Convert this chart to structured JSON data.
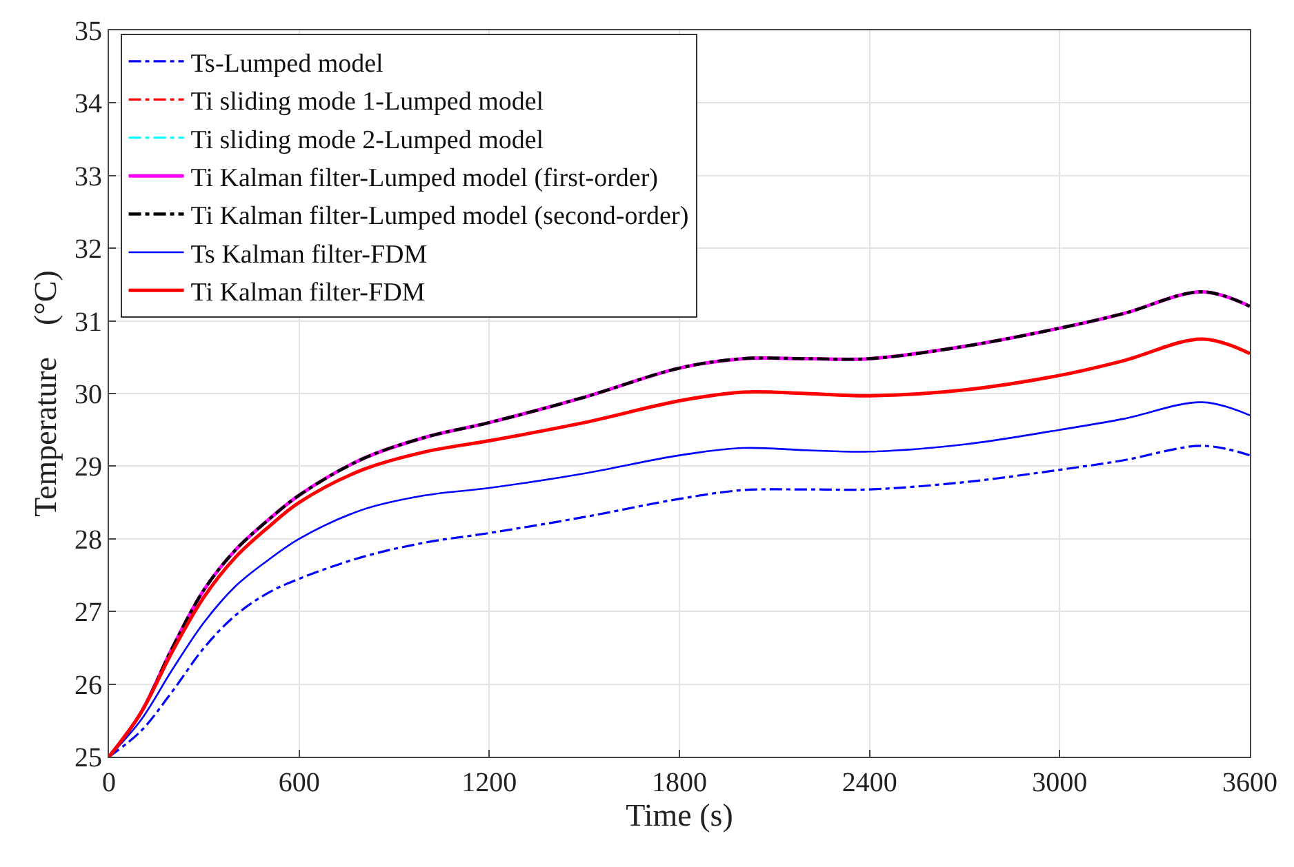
{
  "chart_data": {
    "type": "line",
    "xlabel": "Time (s)",
    "ylabel": "Temperature    (°C)",
    "x": [
      0,
      100,
      200,
      300,
      400,
      500,
      600,
      800,
      1000,
      1200,
      1500,
      1800,
      2000,
      2200,
      2400,
      2700,
      3000,
      3200,
      3450,
      3600
    ],
    "xlim": [
      0,
      3600
    ],
    "xticks": [
      0,
      600,
      1200,
      1800,
      2400,
      3000,
      3600
    ],
    "ylim": [
      25,
      35
    ],
    "yticks": [
      25,
      26,
      27,
      28,
      29,
      30,
      31,
      32,
      33,
      34,
      35
    ],
    "grid": true,
    "legend": "top left",
    "series": [
      {
        "name": "Ts-Lumped model",
        "color": "#0000ff",
        "line_style": "dashed",
        "values": [
          25,
          25.35,
          25.9,
          26.5,
          26.95,
          27.25,
          27.45,
          27.75,
          27.95,
          28.08,
          28.3,
          28.55,
          28.67,
          28.68,
          28.68,
          28.78,
          28.95,
          29.08,
          29.28,
          29.15
        ]
      },
      {
        "name": "Ti sliding mode 1-Lumped model",
        "color": "#ff0000",
        "line_style": "dashed",
        "values": [
          null,
          null,
          null,
          null,
          null,
          null,
          null,
          null,
          null,
          null,
          null,
          null,
          null,
          null,
          null,
          null,
          null,
          null,
          null,
          null
        ]
      },
      {
        "name": "Ti sliding mode 2-Lumped model",
        "color": "#00ffff",
        "line_style": "dashed",
        "values": [
          null,
          null,
          null,
          null,
          null,
          null,
          null,
          null,
          null,
          null,
          null,
          null,
          null,
          null,
          null,
          null,
          null,
          null,
          null,
          null
        ]
      },
      {
        "name": "Ti Kalman filter-Lumped model (first-order)",
        "color": "#ff00ff",
        "line_style": "solid",
        "values": [
          25,
          25.6,
          26.5,
          27.3,
          27.85,
          28.25,
          28.6,
          29.1,
          29.4,
          29.6,
          29.95,
          30.35,
          30.48,
          30.48,
          30.48,
          30.65,
          30.9,
          31.1,
          31.4,
          31.2
        ]
      },
      {
        "name": "Ti Kalman filter-Lumped model (second-order)",
        "color": "#000000",
        "line_style": "dashed",
        "values": [
          25,
          25.6,
          26.5,
          27.3,
          27.85,
          28.25,
          28.6,
          29.1,
          29.4,
          29.6,
          29.95,
          30.35,
          30.48,
          30.48,
          30.48,
          30.65,
          30.9,
          31.1,
          31.4,
          31.2
        ]
      },
      {
        "name": "Ts Kalman filter-FDM",
        "color": "#0000ff",
        "line_style": "solid",
        "values": [
          25,
          25.5,
          26.2,
          26.85,
          27.35,
          27.7,
          28.0,
          28.4,
          28.6,
          28.7,
          28.9,
          29.15,
          29.25,
          29.22,
          29.2,
          29.3,
          29.5,
          29.65,
          29.88,
          29.7
        ]
      },
      {
        "name": "Ti Kalman filter-FDM",
        "color": "#ff0000",
        "line_style": "solid",
        "values": [
          25,
          25.6,
          26.45,
          27.2,
          27.75,
          28.15,
          28.5,
          28.95,
          29.2,
          29.35,
          29.6,
          29.9,
          30.02,
          30.0,
          29.97,
          30.05,
          30.25,
          30.45,
          30.75,
          30.55
        ]
      }
    ]
  }
}
